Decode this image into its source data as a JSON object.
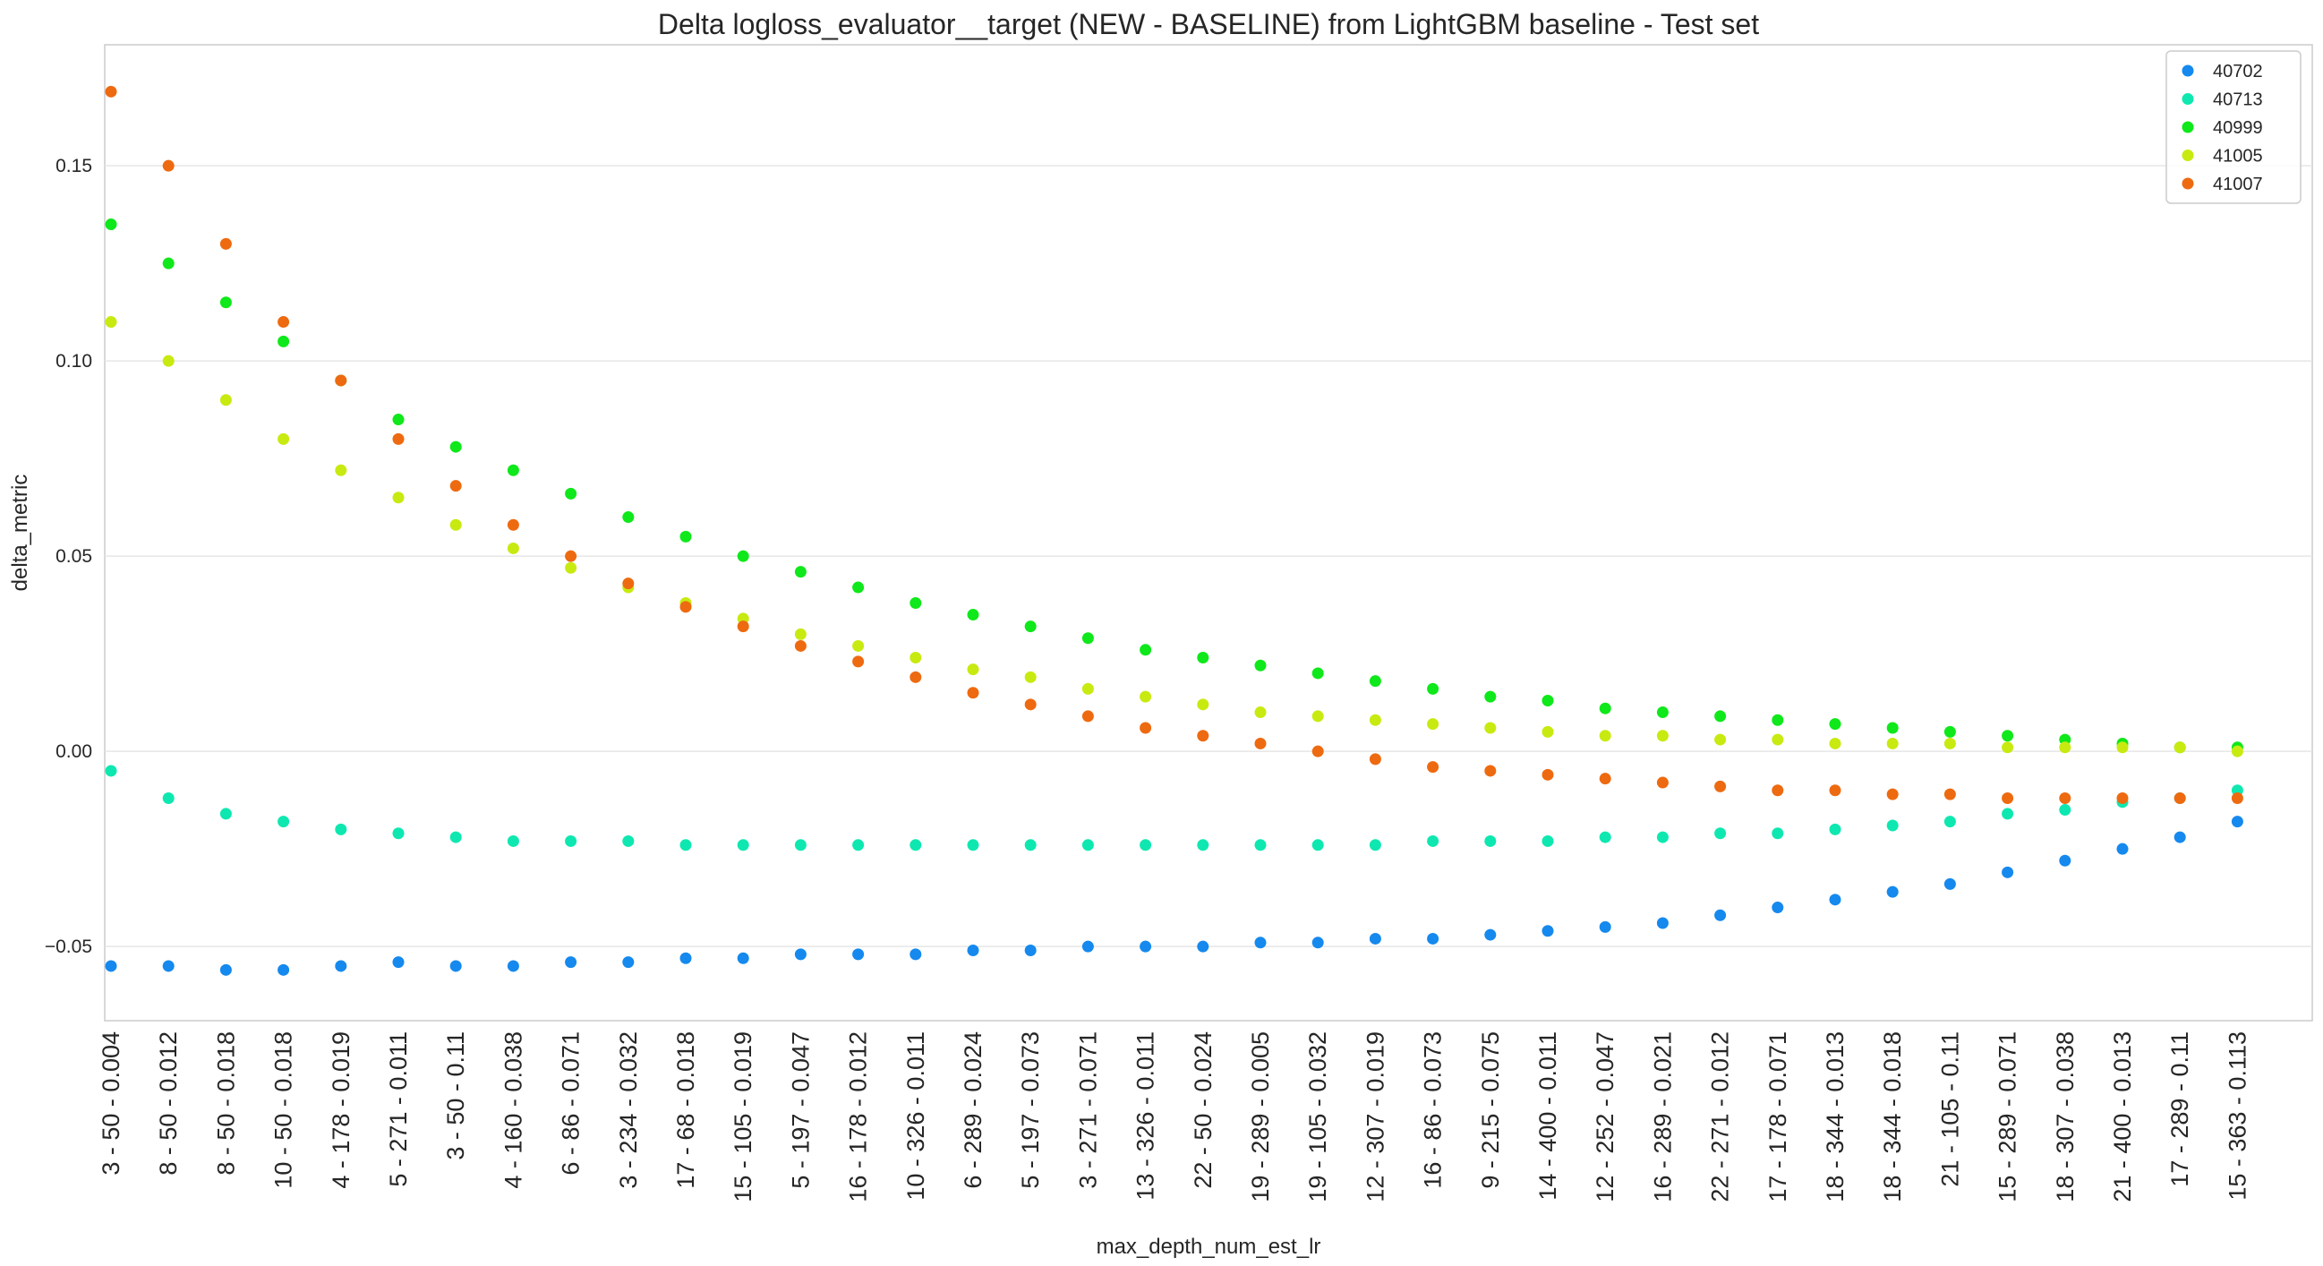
{
  "chart_data": {
    "type": "scatter",
    "title": "Delta logloss_evaluator__target (NEW - BASELINE) from LightGBM baseline - Test set",
    "xlabel": "max_depth_num_est_lr",
    "ylabel": "delta_metric",
    "ylim": [
      -0.069,
      0.181
    ],
    "grid": true,
    "legend_position": "top-right",
    "y_ticks": [
      {
        "value": -0.05,
        "label": "−0.05"
      },
      {
        "value": 0.0,
        "label": "0.00"
      },
      {
        "value": 0.05,
        "label": "0.05"
      },
      {
        "value": 0.1,
        "label": "0.10"
      },
      {
        "value": 0.15,
        "label": "0.15"
      }
    ],
    "x_tick_labels": [
      "3 - 50 - 0.004",
      "8 - 50 - 0.012",
      "8 - 50 - 0.018",
      "10 - 50 - 0.018",
      "4 - 178 - 0.019",
      "5 - 271 - 0.011",
      "3 - 50 - 0.11",
      "4 - 160 - 0.038",
      "6 - 86 - 0.071",
      "3 - 234 - 0.032",
      "17 - 68 - 0.018",
      "15 - 105 - 0.019",
      "5 - 197 - 0.047",
      "16 - 178 - 0.012",
      "10 - 326 - 0.011",
      "6 - 289 - 0.024",
      "5 - 197 - 0.073",
      "3 - 271 - 0.071",
      "13 - 326 - 0.011",
      "22 - 50 - 0.024",
      "19 - 289 - 0.005",
      "19 - 105 - 0.032",
      "12 - 307 - 0.019",
      "16 - 86 - 0.073",
      "9 - 215 - 0.075",
      "14 - 400 - 0.011",
      "12 - 252 - 0.047",
      "16 - 289 - 0.021",
      "22 - 271 - 0.012",
      "17 - 178 - 0.071",
      "18 - 344 - 0.013",
      "18 - 344 - 0.018",
      "21 - 105 - 0.11",
      "15 - 289 - 0.071",
      "18 - 307 - 0.038",
      "21 - 400 - 0.013",
      "17 - 289 - 0.11",
      "15 - 363 - 0.113"
    ],
    "series": [
      {
        "name": "40702",
        "color": "#1589ee",
        "values": [
          -0.055,
          -0.055,
          -0.056,
          -0.056,
          -0.055,
          -0.054,
          -0.055,
          -0.055,
          -0.054,
          -0.054,
          -0.053,
          -0.053,
          -0.052,
          -0.052,
          -0.052,
          -0.051,
          -0.051,
          -0.05,
          -0.05,
          -0.05,
          -0.049,
          -0.049,
          -0.048,
          -0.048,
          -0.047,
          -0.046,
          -0.045,
          -0.044,
          -0.042,
          -0.04,
          -0.038,
          -0.036,
          -0.034,
          -0.031,
          -0.028,
          -0.025,
          -0.022,
          -0.018
        ]
      },
      {
        "name": "40713",
        "color": "#0ee8b0",
        "values": [
          -0.005,
          -0.012,
          -0.016,
          -0.018,
          -0.02,
          -0.021,
          -0.022,
          -0.023,
          -0.023,
          -0.023,
          -0.024,
          -0.024,
          -0.024,
          -0.024,
          -0.024,
          -0.024,
          -0.024,
          -0.024,
          -0.024,
          -0.024,
          -0.024,
          -0.024,
          -0.024,
          -0.023,
          -0.023,
          -0.023,
          -0.022,
          -0.022,
          -0.021,
          -0.021,
          -0.02,
          -0.019,
          -0.018,
          -0.016,
          -0.015,
          -0.013,
          -0.012,
          -0.01
        ]
      },
      {
        "name": "40999",
        "color": "#0fe81a",
        "values": [
          0.135,
          0.125,
          0.115,
          0.105,
          0.095,
          0.085,
          0.078,
          0.072,
          0.066,
          0.06,
          0.055,
          0.05,
          0.046,
          0.042,
          0.038,
          0.035,
          0.032,
          0.029,
          0.026,
          0.024,
          0.022,
          0.02,
          0.018,
          0.016,
          0.014,
          0.013,
          0.011,
          0.01,
          0.009,
          0.008,
          0.007,
          0.006,
          0.005,
          0.004,
          0.003,
          0.002,
          0.001,
          0.001
        ]
      },
      {
        "name": "41005",
        "color": "#c8ea10",
        "values": [
          0.11,
          0.1,
          0.09,
          0.08,
          0.072,
          0.065,
          0.058,
          0.052,
          0.047,
          0.042,
          0.038,
          0.034,
          0.03,
          0.027,
          0.024,
          0.021,
          0.019,
          0.016,
          0.014,
          0.012,
          0.01,
          0.009,
          0.008,
          0.007,
          0.006,
          0.005,
          0.004,
          0.004,
          0.003,
          0.003,
          0.002,
          0.002,
          0.002,
          0.001,
          0.001,
          0.001,
          0.001,
          0.0
        ]
      },
      {
        "name": "41007",
        "color": "#ee6a10",
        "values": [
          0.169,
          0.15,
          0.13,
          0.11,
          0.095,
          0.08,
          0.068,
          0.058,
          0.05,
          0.043,
          0.037,
          0.032,
          0.027,
          0.023,
          0.019,
          0.015,
          0.012,
          0.009,
          0.006,
          0.004,
          0.002,
          0.0,
          -0.002,
          -0.004,
          -0.005,
          -0.006,
          -0.007,
          -0.008,
          -0.009,
          -0.01,
          -0.01,
          -0.011,
          -0.011,
          -0.012,
          -0.012,
          -0.012,
          -0.012,
          -0.012
        ]
      }
    ]
  }
}
